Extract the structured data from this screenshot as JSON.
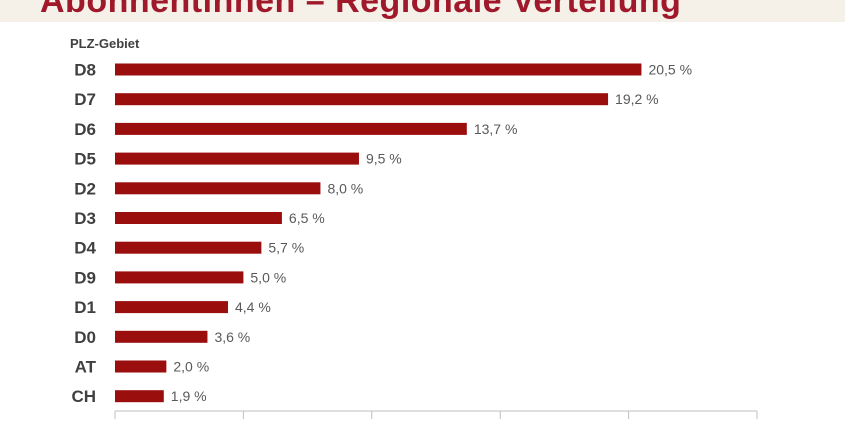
{
  "page": {
    "title": "Abonnentinnen – Regionale Verteilung"
  },
  "chart_data": {
    "type": "bar",
    "orientation": "horizontal",
    "ylabel": "PLZ-Gebiet",
    "categories": [
      "D8",
      "D7",
      "D6",
      "D5",
      "D2",
      "D3",
      "D4",
      "D9",
      "D1",
      "D0",
      "AT",
      "CH"
    ],
    "values": [
      20.5,
      19.2,
      13.7,
      9.5,
      8.0,
      6.5,
      5.7,
      5.0,
      4.4,
      3.6,
      2.0,
      1.9
    ],
    "value_labels": [
      "20,5 %",
      "19,2 %",
      "13,7 %",
      "9,5 %",
      "8,0 %",
      "6,5 %",
      "5,7 %",
      "5,0 %",
      "4,4 %",
      "3,6 %",
      "2,0 %",
      "1,9 %"
    ],
    "xlim": [
      0,
      25
    ],
    "bar_color": "#9b0e0e",
    "grid": false
  }
}
